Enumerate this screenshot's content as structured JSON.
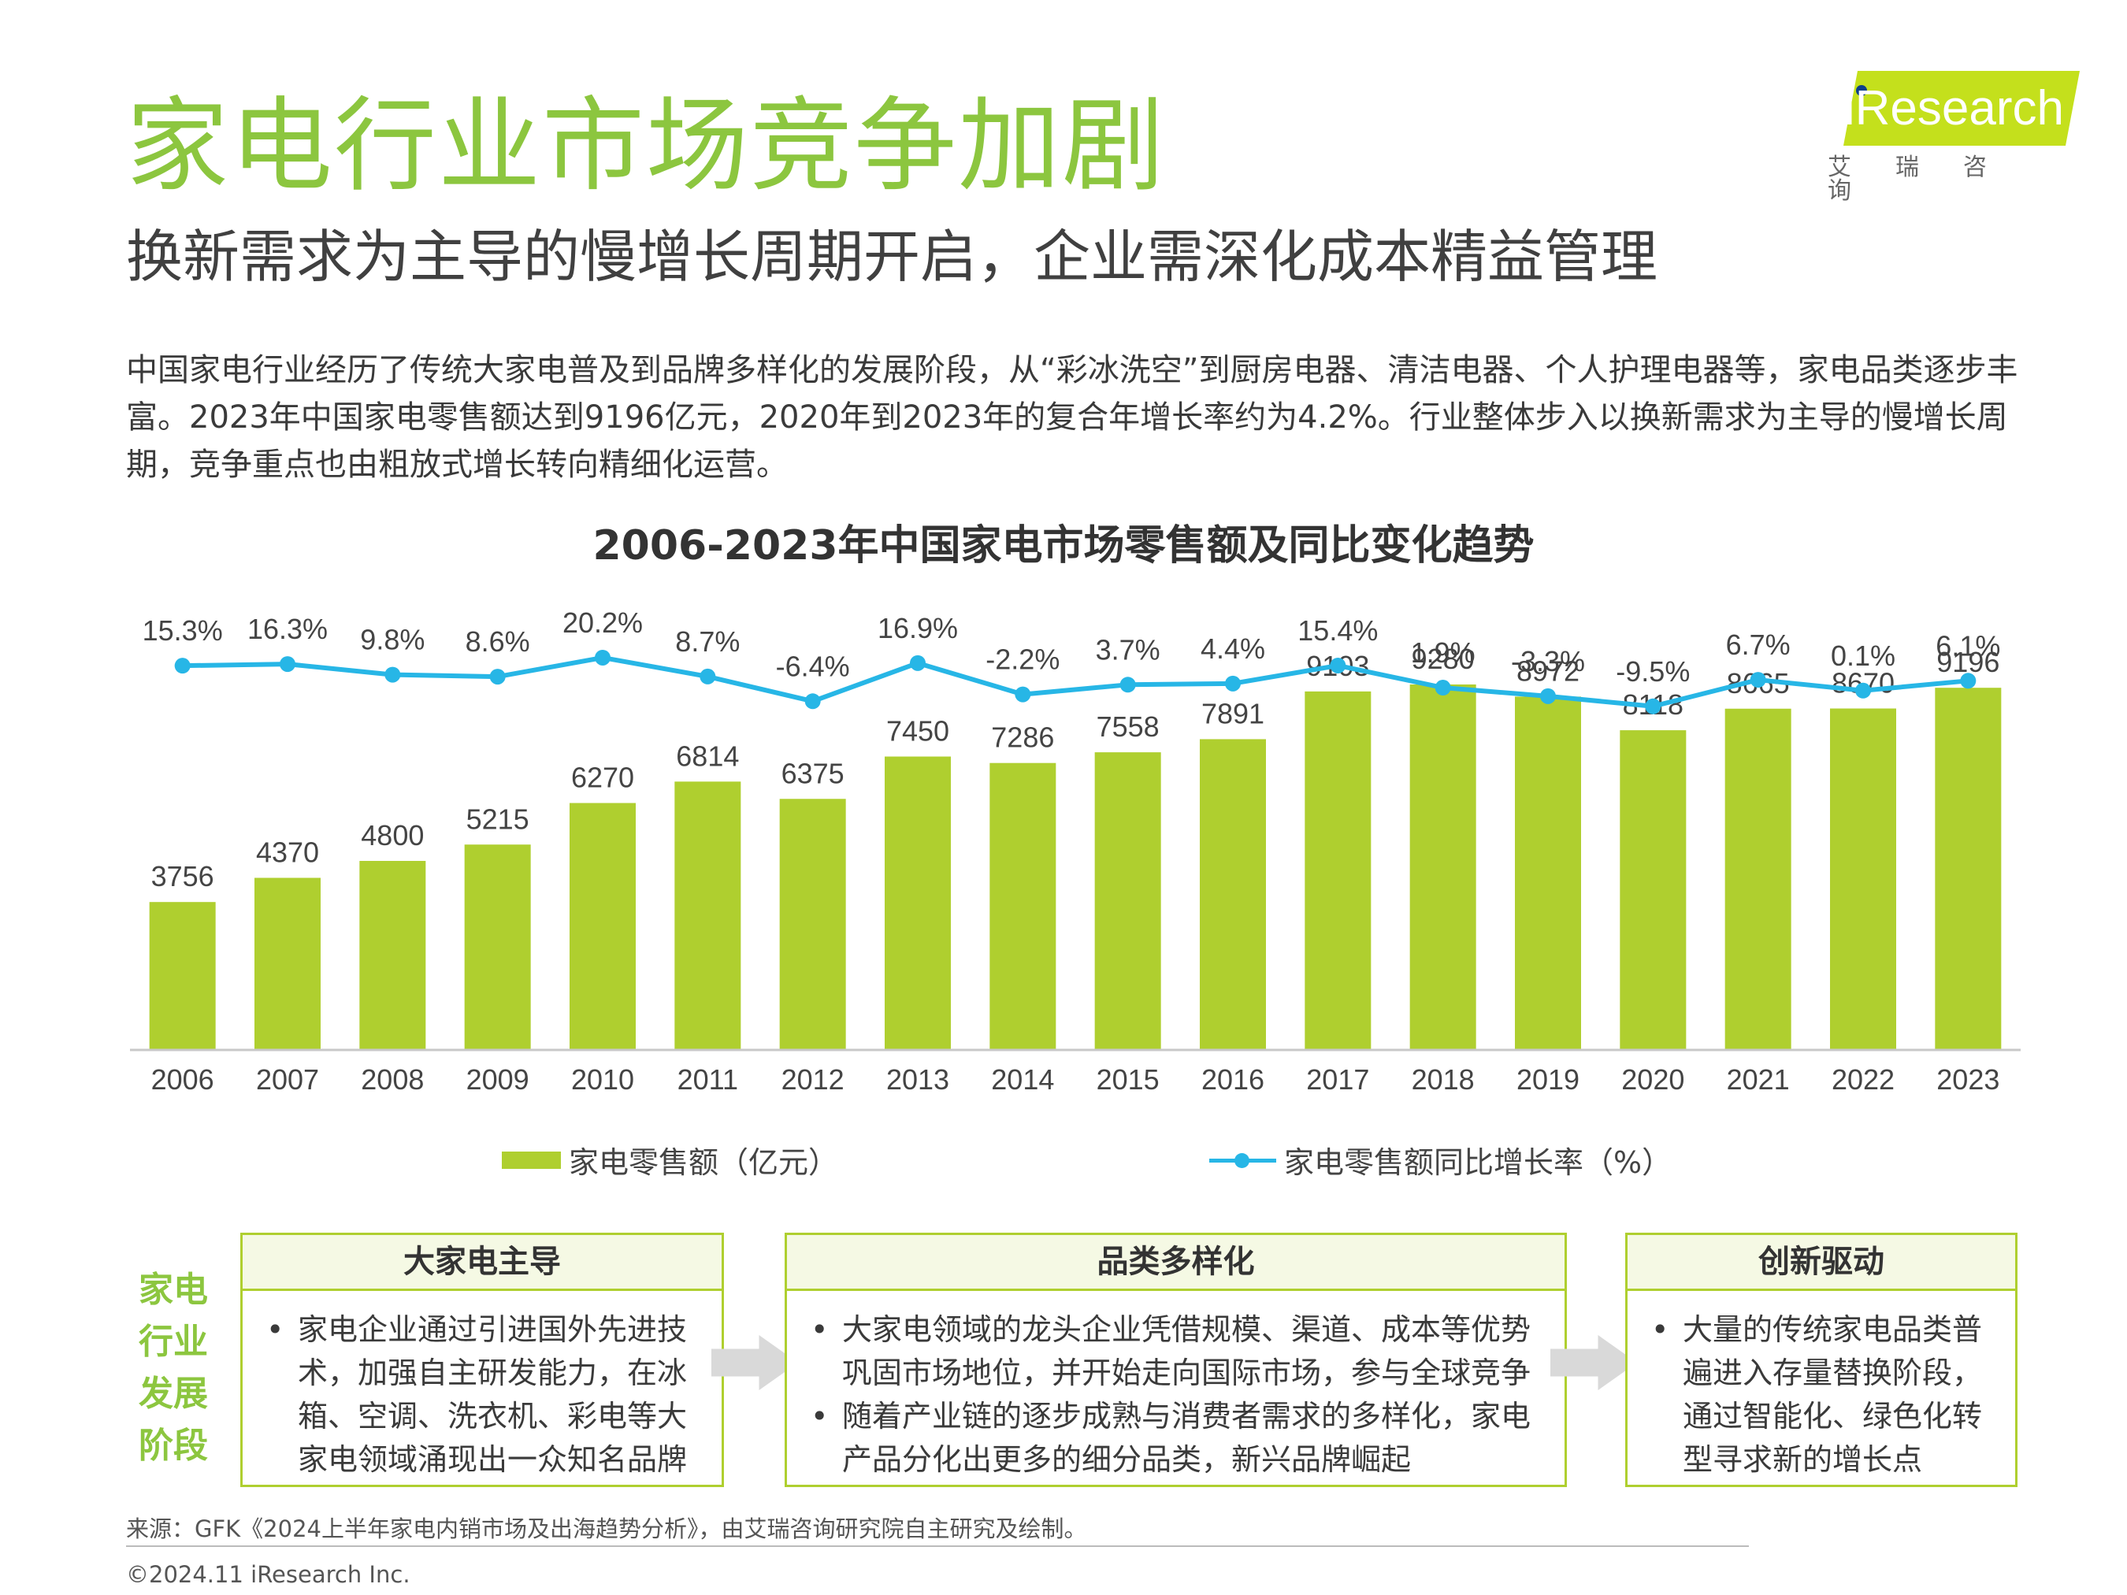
{
  "header": {
    "title": "家电行业市场竞争加剧",
    "subtitle": "换新需求为主导的慢增长周期开启，企业需深化成本精益管理"
  },
  "logo": {
    "brand": "iResearch",
    "brand_cn": "艾瑞咨询"
  },
  "intro": "中国家电行业经历了传统大家电普及到品牌多样化的发展阶段，从“彩冰洗空”到厨房电器、清洁电器、个人护理电器等，家电品类逐步丰富。2023年中国家电零售额达到9196亿元，2020年到2023年的复合年增长率约为4.2%。行业整体步入以换新需求为主导的慢增长周期，竞争重点也由粗放式增长转向精细化运营。",
  "chart_data": {
    "type": "bar",
    "title": "2006-2023年中国家电市场零售额及同比变化趋势",
    "categories": [
      "2006",
      "2007",
      "2008",
      "2009",
      "2010",
      "2011",
      "2012",
      "2013",
      "2014",
      "2015",
      "2016",
      "2017",
      "2018",
      "2019",
      "2020",
      "2021",
      "2022",
      "2023"
    ],
    "series": [
      {
        "name": "家电零售额（亿元）",
        "type": "bar",
        "values": [
          3756,
          4370,
          4800,
          5215,
          6270,
          6814,
          6375,
          7450,
          7286,
          7558,
          7891,
          9103,
          9280,
          8972,
          8118,
          8665,
          8670,
          9196
        ],
        "labels": [
          "3756",
          "4370",
          "4800",
          "5215",
          "6270",
          "6814",
          "6375",
          "7450",
          "7286",
          "7558",
          "7891",
          "9103",
          "9280",
          "8972",
          "8118",
          "8665",
          "8670",
          "9196"
        ],
        "color": "#afcf2f"
      },
      {
        "name": "家电零售额同比增长率（%）",
        "type": "line",
        "values": [
          15.3,
          16.3,
          9.8,
          8.6,
          20.2,
          8.7,
          -6.4,
          16.9,
          -2.2,
          3.7,
          4.4,
          15.4,
          1.9,
          -3.3,
          -9.5,
          6.7,
          0.1,
          6.1
        ],
        "labels": [
          "15.3%",
          "16.3%",
          "9.8%",
          "8.6%",
          "20.2%",
          "8.7%",
          "-6.4%",
          "16.9%",
          "-2.2%",
          "3.7%",
          "4.4%",
          "15.4%",
          "1.9%",
          "-3.3%",
          "-9.5%",
          "6.7%",
          "0.1%",
          "6.1%"
        ],
        "color": "#27b6e6"
      }
    ],
    "xlabel": "",
    "ylabel": "",
    "ylim": [
      0,
      10000
    ],
    "grid": false,
    "legend": "bottom"
  },
  "stages": {
    "label_lines": [
      "家电",
      "行业",
      "发展",
      "阶段"
    ],
    "items": [
      {
        "title": "大家电主导",
        "bullets": [
          "家电企业通过引进国外先进技术，加强自主研发能力，在冰箱、空调、洗衣机、彩电等大家电领域涌现出一众知名品牌"
        ]
      },
      {
        "title": "品类多样化",
        "bullets": [
          "大家电领域的龙头企业凭借规模、渠道、成本等优势巩固市场地位，并开始走向国际市场，参与全球竞争",
          "随着产业链的逐步成熟与消费者需求的多样化，家电产品分化出更多的细分品类，新兴品牌崛起"
        ]
      },
      {
        "title": "创新驱动",
        "bullets": [
          "大量的传统家电品类普遍进入存量替换阶段，通过智能化、绿色化转型寻求新的增长点"
        ]
      }
    ]
  },
  "footer": {
    "source": "来源：GFK《2024上半年家电内销市场及出海趋势分析》，由艾瑞咨询研究院自主研究及绘制。",
    "copyright": "©2024.11 iResearch Inc."
  }
}
